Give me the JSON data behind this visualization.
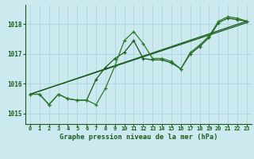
{
  "title": "Graphe pression niveau de la mer (hPa)",
  "bg_color": "#cde9f0",
  "grid_color": "#b0d8e0",
  "line_color_dark": "#1a5c1a",
  "line_color_mid": "#2a7a2a",
  "xlim": [
    -0.5,
    23.5
  ],
  "ylim": [
    1014.65,
    1018.65
  ],
  "yticks": [
    1015,
    1016,
    1017,
    1018
  ],
  "xticks": [
    0,
    1,
    2,
    3,
    4,
    5,
    6,
    7,
    8,
    9,
    10,
    11,
    12,
    13,
    14,
    15,
    16,
    17,
    18,
    19,
    20,
    21,
    22,
    23
  ],
  "main_x": [
    0,
    1,
    2,
    3,
    4,
    5,
    6,
    7,
    8,
    9,
    10,
    11,
    12,
    13,
    14,
    15,
    16,
    17,
    18,
    19,
    20,
    21,
    22,
    23
  ],
  "main_y": [
    1015.65,
    1015.65,
    1015.3,
    1015.65,
    1015.5,
    1015.45,
    1015.45,
    1015.3,
    1015.85,
    1016.6,
    1017.45,
    1017.75,
    1017.35,
    1016.85,
    1016.85,
    1016.75,
    1016.5,
    1017.05,
    1017.3,
    1017.6,
    1018.1,
    1018.25,
    1018.2,
    1018.1
  ],
  "line2_x": [
    0,
    1,
    2,
    3,
    4,
    5,
    6,
    7,
    8,
    9,
    10,
    11,
    12,
    13,
    14,
    15,
    16,
    17,
    18,
    19,
    20,
    21,
    22,
    23
  ],
  "line2_y": [
    1015.65,
    1015.65,
    1015.3,
    1015.65,
    1015.5,
    1015.45,
    1015.45,
    1016.15,
    1016.55,
    1016.85,
    1017.05,
    1017.45,
    1016.85,
    1016.8,
    1016.8,
    1016.7,
    1016.5,
    1017.0,
    1017.25,
    1017.55,
    1018.05,
    1018.2,
    1018.15,
    1018.1
  ],
  "trend1_x": [
    0,
    23
  ],
  "trend1_y": [
    1015.65,
    1018.1
  ],
  "trend2_x": [
    0,
    23
  ],
  "trend2_y": [
    1015.65,
    1018.05
  ],
  "marker_size": 3.5,
  "linewidth": 0.9
}
